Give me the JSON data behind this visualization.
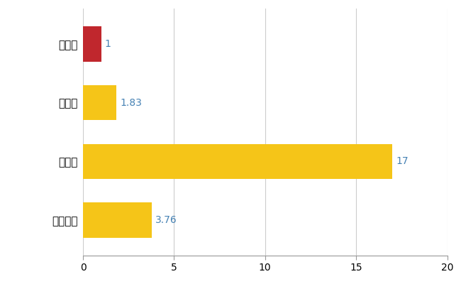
{
  "categories": [
    "全国平均",
    "県最大",
    "県平均",
    "信濃町"
  ],
  "values": [
    3.76,
    17,
    1.83,
    1
  ],
  "bar_colors": [
    "#F5C518",
    "#F5C518",
    "#F5C518",
    "#C0272D"
  ],
  "value_labels": [
    "3.76",
    "17",
    "1.83",
    "1"
  ],
  "label_color": "#4682B4",
  "xlim": [
    0,
    20
  ],
  "xticks": [
    0,
    5,
    10,
    15,
    20
  ],
  "grid_color": "#CCCCCC",
  "background_color": "#FFFFFF",
  "bar_height": 0.6,
  "label_fontsize": 10,
  "tick_fontsize": 10,
  "ytick_fontsize": 11
}
